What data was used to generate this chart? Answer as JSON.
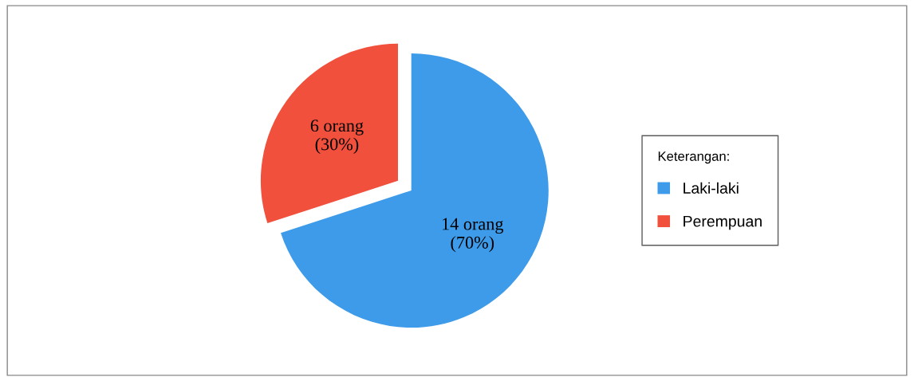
{
  "chart_data": {
    "type": "pie",
    "categories": [
      "Laki-laki",
      "Perempuan"
    ],
    "values": [
      14,
      6
    ],
    "colors": [
      "#3d9be9",
      "#f0503c"
    ],
    "value_labels": [
      "14 orang\n(70%)",
      "6 orang\n(30%)"
    ],
    "legend_title": "Keterangan:",
    "legend": "right"
  }
}
